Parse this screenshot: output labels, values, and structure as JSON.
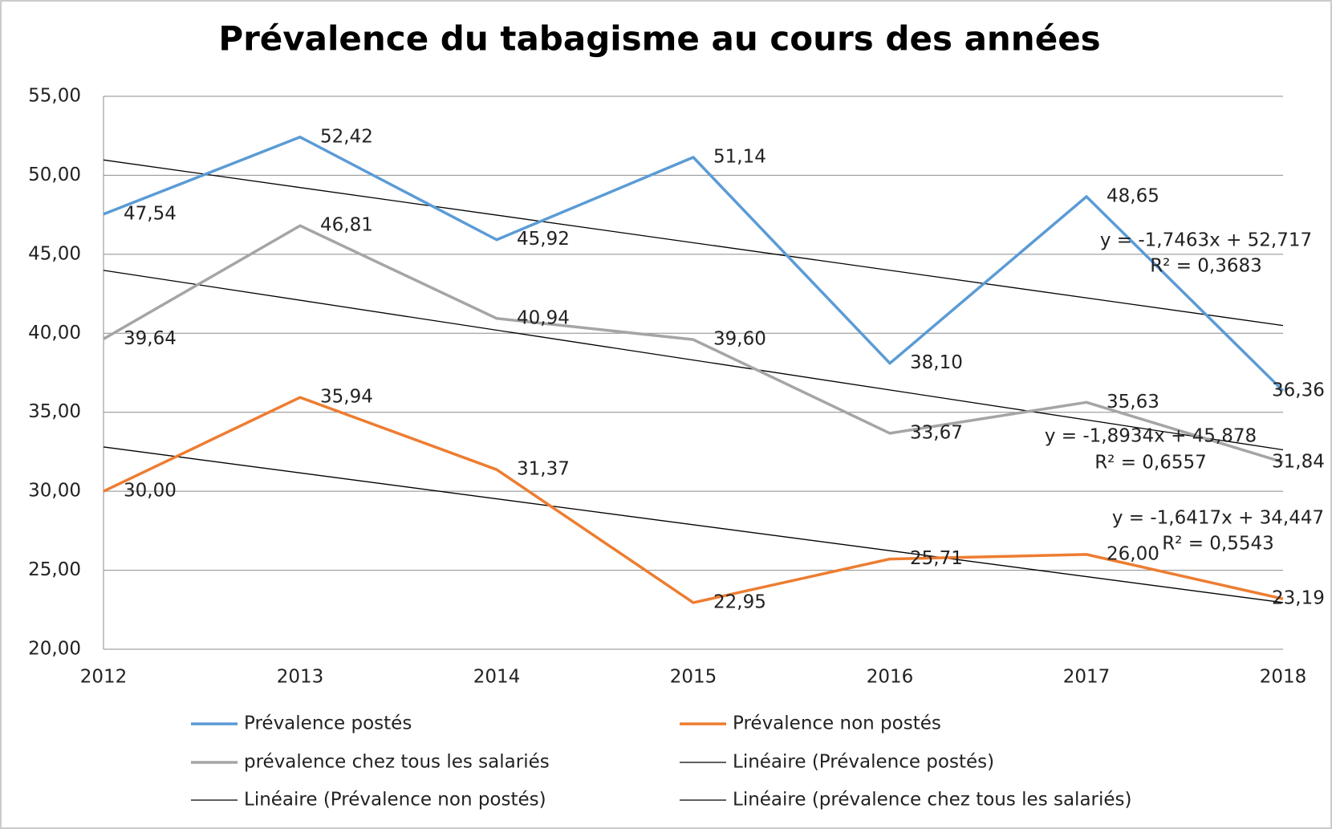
{
  "chart_data": {
    "type": "line",
    "title": "Prévalence du tabagisme au cours des années",
    "categories": [
      "2012",
      "2013",
      "2014",
      "2015",
      "2016",
      "2017",
      "2018"
    ],
    "ylim": [
      20,
      55
    ],
    "yticks": [
      {
        "value": 20,
        "label": "20,00"
      },
      {
        "value": 25,
        "label": "25,00"
      },
      {
        "value": 30,
        "label": "30,00"
      },
      {
        "value": 35,
        "label": "35,00"
      },
      {
        "value": 40,
        "label": "40,00"
      },
      {
        "value": 45,
        "label": "45,00"
      },
      {
        "value": 50,
        "label": "50,00"
      },
      {
        "value": 55,
        "label": "55,00"
      }
    ],
    "grid": true,
    "legend": "bottom",
    "series": [
      {
        "name": "Prévalence postés",
        "color": "#5b9bd5",
        "values": [
          47.54,
          52.42,
          45.92,
          51.14,
          38.1,
          48.65,
          36.36
        ],
        "value_labels": [
          "47,54",
          "52,42",
          "45,92",
          "51,14",
          "38,10",
          "48,65",
          "36,36"
        ]
      },
      {
        "name": "Prévalence non postés",
        "color": "#ed7d31",
        "values": [
          30.0,
          35.94,
          31.37,
          22.95,
          25.71,
          26.0,
          23.19
        ],
        "value_labels": [
          "30,00",
          "35,94",
          "31,37",
          "22,95",
          "25,71",
          "26,00",
          "23,19"
        ]
      },
      {
        "name": "prévalence chez tous les salariés",
        "color": "#a5a5a5",
        "values": [
          39.64,
          46.81,
          40.94,
          39.6,
          33.67,
          35.63,
          31.84
        ],
        "value_labels": [
          "39,64",
          "46,81",
          "40,94",
          "39,60",
          "33,67",
          "35,63",
          "31,84"
        ]
      }
    ],
    "trendlines": [
      {
        "name": "Linéaire (Prévalence postés)",
        "color": "#000000",
        "slope": -1.7463,
        "intercept": 52.717,
        "equation": "y = -1,7463x + 52,717",
        "r2_label": "R² = 0,3683"
      },
      {
        "name": "Linéaire (Prévalence non postés)",
        "color": "#000000",
        "slope": -1.6417,
        "intercept": 34.447,
        "equation": "y = -1,6417x + 34,447",
        "r2_label": "R² = 0,5543"
      },
      {
        "name": "Linéaire (prévalence chez tous les salariés)",
        "color": "#000000",
        "slope": -1.8934,
        "intercept": 45.878,
        "equation": "y = -1,8934x + 45,878",
        "r2_label": "R² = 0,6557"
      }
    ]
  }
}
